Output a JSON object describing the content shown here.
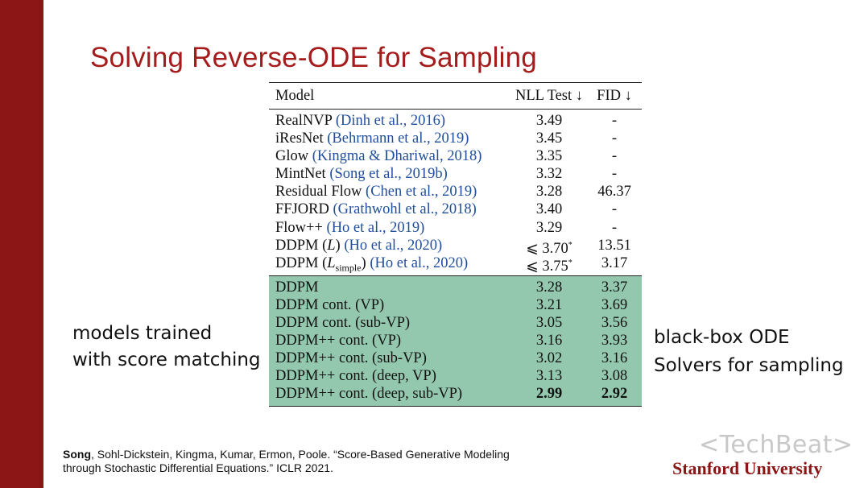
{
  "slide": {
    "title": "Solving Reverse-ODE for Sampling",
    "left_note": [
      "models trained",
      "with score matching"
    ],
    "right_note": [
      "black-box ODE",
      "Solvers for sampling"
    ],
    "reference_author": "Song",
    "reference_rest_line1": ", Sohl-Dickstein, Kingma, Kumar, Ermon, Poole. “Score-Based Generative Modeling",
    "reference_line2": "through Stochastic Differential Equations.” ICLR 2021.",
    "watermark": "<TechBeat>",
    "university": "Stanford University"
  },
  "table": {
    "headers": {
      "model": "Model",
      "nll": "NLL Test ↓",
      "fid": "FID ↓"
    },
    "rows": [
      {
        "name": "RealNVP",
        "cite": "(Dinh et al., 2016)",
        "nll": "3.49",
        "fid": "-"
      },
      {
        "name": "iResNet",
        "cite": "(Behrmann et al., 2019)",
        "nll": "3.45",
        "fid": "-"
      },
      {
        "name": "Glow",
        "cite": "(Kingma & Dhariwal, 2018)",
        "nll": "3.35",
        "fid": "-"
      },
      {
        "name": "MintNet",
        "cite": "(Song et al., 2019b)",
        "nll": "3.32",
        "fid": "-"
      },
      {
        "name": "Residual Flow",
        "cite": "(Chen et al., 2019)",
        "nll": "3.28",
        "fid": "46.37"
      },
      {
        "name": "FFJORD",
        "cite": "(Grathwohl et al., 2018)",
        "nll": "3.40",
        "fid": "-"
      },
      {
        "name": "Flow++",
        "cite": "(Ho et al., 2019)",
        "nll": "3.29",
        "fid": "-"
      }
    ],
    "ddpm_l": {
      "prefix": "DDPM (",
      "sym": "L",
      "suffix": ")",
      "cite": "(Ho et al., 2020)",
      "nll": "⩽ 3.70",
      "star": "*",
      "fid": "13.51"
    },
    "ddpm_ls": {
      "prefix": "DDPM (",
      "sym": "L",
      "sub": "simple",
      "suffix": ")",
      "cite": "(Ho et al., 2020)",
      "nll": "⩽ 3.75",
      "star": "*",
      "fid": "3.17"
    },
    "green_rows": [
      {
        "name": "DDPM",
        "nll": "3.28",
        "fid": "3.37"
      },
      {
        "name": "DDPM cont. (VP)",
        "nll": "3.21",
        "fid": "3.69"
      },
      {
        "name": "DDPM cont. (sub-VP)",
        "nll": "3.05",
        "fid": "3.56"
      },
      {
        "name": "DDPM++ cont. (VP)",
        "nll": "3.16",
        "fid": "3.93"
      },
      {
        "name": "DDPM++ cont. (sub-VP)",
        "nll": "3.02",
        "fid": "3.16"
      },
      {
        "name": "DDPM++ cont. (deep, VP)",
        "nll": "3.13",
        "fid": "3.08"
      },
      {
        "name": "DDPM++ cont. (deep, sub-VP)",
        "nll": "2.99",
        "fid": "2.92"
      }
    ]
  }
}
